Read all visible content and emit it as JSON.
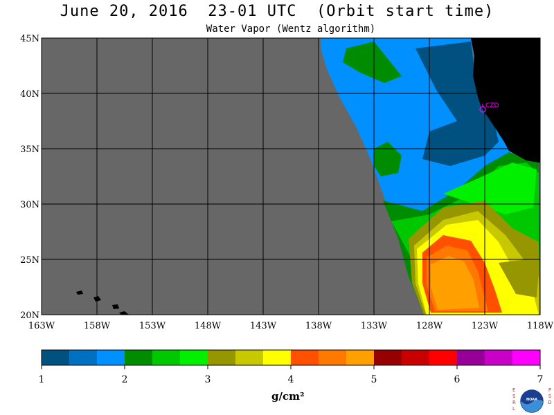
{
  "header": {
    "title": "June 20, 2016  23-01 UTC  (Orbit start time)",
    "subtitle": "Water Vapor (Wentz algorithm)"
  },
  "map": {
    "lat_labels": [
      "45N",
      "40N",
      "35N",
      "30N",
      "25N",
      "20N"
    ],
    "lon_labels": [
      "163W",
      "158W",
      "153W",
      "148W",
      "143W",
      "138W",
      "133W",
      "128W",
      "123W",
      "118W"
    ],
    "lat_range": [
      20,
      45
    ],
    "lon_range": [
      -163,
      -118
    ],
    "station_label": "CZD",
    "colors": {
      "no_data": "#676767",
      "land": "#000000",
      "gridline": "#000000",
      "station": "#ff00ff"
    }
  },
  "colorbar": {
    "tick_labels": [
      "1",
      "2",
      "3",
      "4",
      "5",
      "6",
      "7"
    ],
    "units": "g/cm²",
    "range": [
      1,
      7
    ],
    "bin_colors": [
      "#005080",
      "#0070c0",
      "#0090ff",
      "#008c00",
      "#00c800",
      "#00f000",
      "#969600",
      "#c8c800",
      "#ffff00",
      "#ff5000",
      "#ff7800",
      "#ffa000",
      "#960000",
      "#c80000",
      "#ff0000",
      "#960096",
      "#c800c8",
      "#ff00ff"
    ]
  },
  "logo": {
    "left_letters": [
      "E",
      "S",
      "R",
      "L"
    ],
    "right_letters": [
      "P",
      "S",
      "D"
    ],
    "center_text": "NOAA"
  }
}
